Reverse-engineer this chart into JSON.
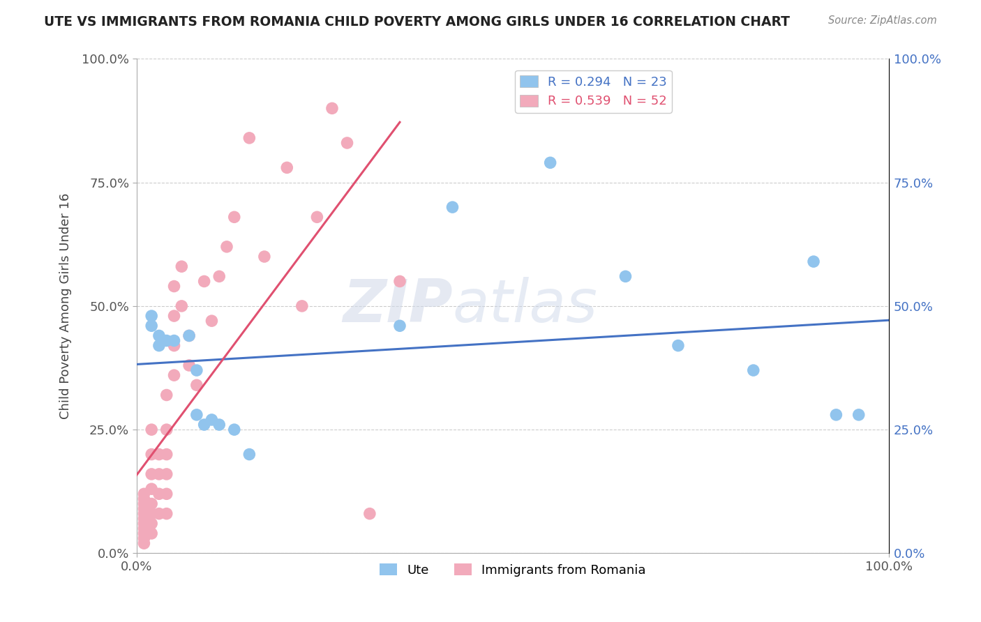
{
  "title": "UTE VS IMMIGRANTS FROM ROMANIA CHILD POVERTY AMONG GIRLS UNDER 16 CORRELATION CHART",
  "source": "Source: ZipAtlas.com",
  "ylabel": "Child Poverty Among Girls Under 16",
  "xlim": [
    0,
    1.0
  ],
  "ylim": [
    0,
    1.0
  ],
  "xtick_labels": [
    "0.0%",
    "100.0%"
  ],
  "ytick_labels": [
    "0.0%",
    "25.0%",
    "50.0%",
    "75.0%",
    "100.0%"
  ],
  "ytick_positions": [
    0.0,
    0.25,
    0.5,
    0.75,
    1.0
  ],
  "watermark_zip": "ZIP",
  "watermark_atlas": "atlas",
  "ute_color": "#91C4ED",
  "romania_color": "#F2AABB",
  "ute_line_color": "#4472C4",
  "romania_line_color": "#E05070",
  "ute_R": 0.294,
  "ute_N": 23,
  "romania_R": 0.539,
  "romania_N": 52,
  "legend_label_ute": "Ute",
  "legend_label_romania": "Immigrants from Romania",
  "ute_scatter_x": [
    0.02,
    0.02,
    0.03,
    0.03,
    0.04,
    0.05,
    0.07,
    0.08,
    0.08,
    0.09,
    0.1,
    0.11,
    0.13,
    0.15,
    0.35,
    0.42,
    0.55,
    0.65,
    0.72,
    0.82,
    0.9,
    0.93,
    0.96
  ],
  "ute_scatter_y": [
    0.48,
    0.46,
    0.44,
    0.42,
    0.43,
    0.43,
    0.44,
    0.37,
    0.28,
    0.26,
    0.27,
    0.26,
    0.25,
    0.2,
    0.46,
    0.7,
    0.79,
    0.56,
    0.42,
    0.37,
    0.59,
    0.28,
    0.28
  ],
  "romania_scatter_x": [
    0.01,
    0.01,
    0.01,
    0.01,
    0.01,
    0.01,
    0.01,
    0.01,
    0.01,
    0.01,
    0.01,
    0.02,
    0.02,
    0.02,
    0.02,
    0.02,
    0.02,
    0.02,
    0.02,
    0.03,
    0.03,
    0.03,
    0.03,
    0.04,
    0.04,
    0.04,
    0.04,
    0.04,
    0.04,
    0.05,
    0.05,
    0.05,
    0.05,
    0.06,
    0.06,
    0.07,
    0.07,
    0.08,
    0.09,
    0.1,
    0.11,
    0.12,
    0.13,
    0.15,
    0.17,
    0.2,
    0.22,
    0.24,
    0.26,
    0.28,
    0.31,
    0.35
  ],
  "romania_scatter_y": [
    0.02,
    0.03,
    0.04,
    0.05,
    0.06,
    0.07,
    0.08,
    0.09,
    0.1,
    0.11,
    0.12,
    0.04,
    0.06,
    0.08,
    0.1,
    0.13,
    0.16,
    0.2,
    0.25,
    0.08,
    0.12,
    0.16,
    0.2,
    0.08,
    0.12,
    0.16,
    0.2,
    0.25,
    0.32,
    0.36,
    0.42,
    0.48,
    0.54,
    0.5,
    0.58,
    0.44,
    0.38,
    0.34,
    0.55,
    0.47,
    0.56,
    0.62,
    0.68,
    0.84,
    0.6,
    0.78,
    0.5,
    0.68,
    0.9,
    0.83,
    0.08,
    0.55
  ]
}
